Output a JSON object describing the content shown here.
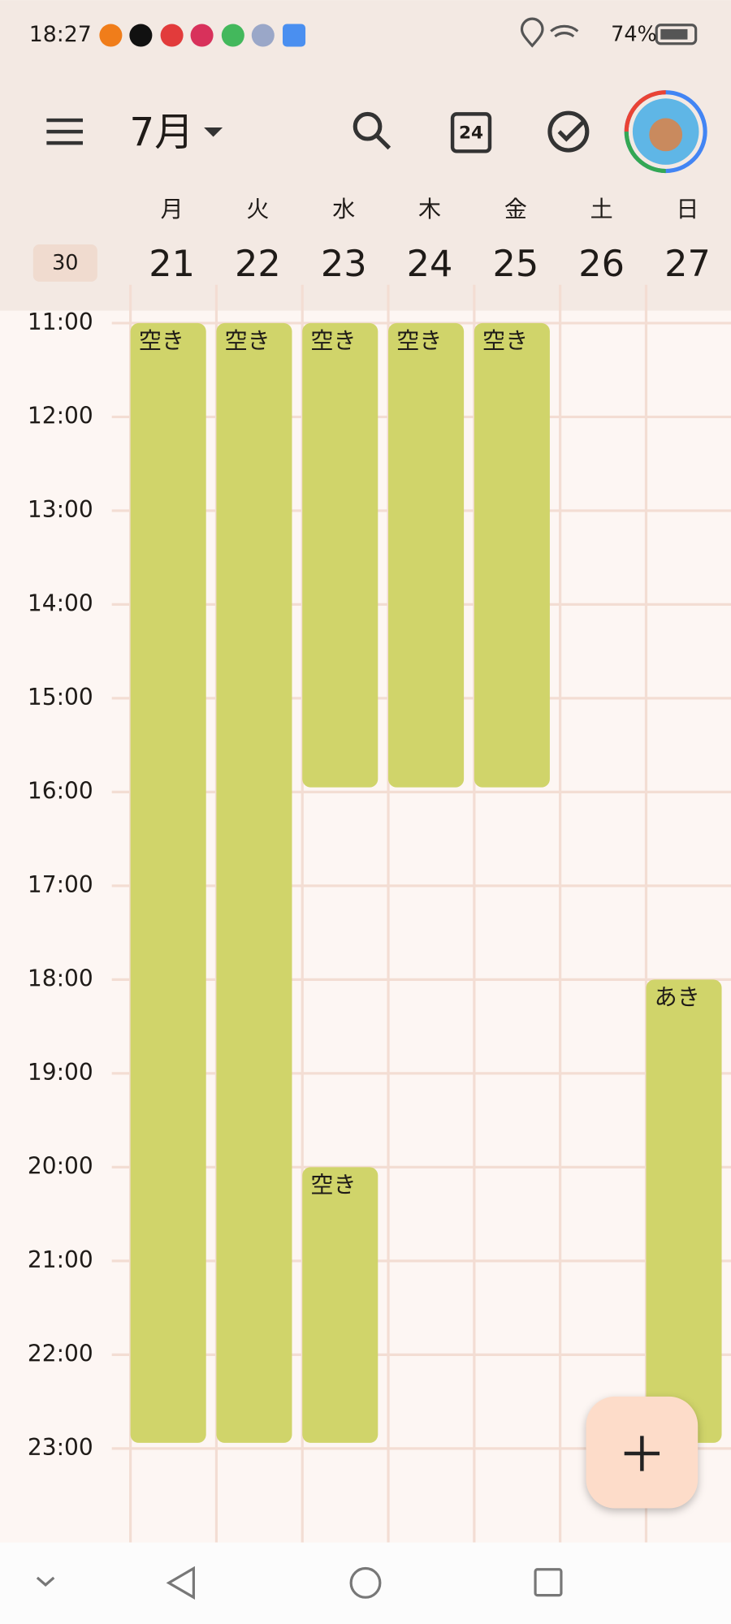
{
  "status_bar": {
    "time": "18:27",
    "battery": "74%"
  },
  "header": {
    "month": "7月",
    "week_number": "30"
  },
  "days": [
    {
      "weekday": "月",
      "date": "21"
    },
    {
      "weekday": "火",
      "date": "22"
    },
    {
      "weekday": "水",
      "date": "23"
    },
    {
      "weekday": "木",
      "date": "24"
    },
    {
      "weekday": "金",
      "date": "25"
    },
    {
      "weekday": "土",
      "date": "26"
    },
    {
      "weekday": "日",
      "date": "27"
    }
  ],
  "time_labels": [
    "11:00",
    "12:00",
    "13:00",
    "14:00",
    "15:00",
    "16:00",
    "17:00",
    "18:00",
    "19:00",
    "20:00",
    "21:00",
    "22:00",
    "23:00"
  ],
  "events": [
    {
      "label": "空き"
    },
    {
      "label": "空き"
    },
    {
      "label": "空き"
    },
    {
      "label": "空き"
    },
    {
      "label": "空き"
    },
    {
      "label": "空き"
    },
    {
      "label": "あき"
    }
  ]
}
